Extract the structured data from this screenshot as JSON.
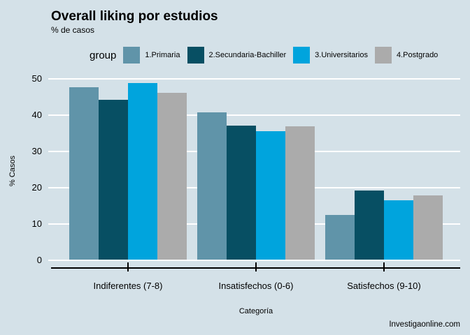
{
  "page": {
    "background_color": "#D4E1E8",
    "watermark": "Investigaonline.com"
  },
  "chart_data": {
    "type": "bar",
    "title": "Overall liking por estudios",
    "subtitle": "% de casos",
    "xlabel": "Categoría",
    "ylabel": "% Casos",
    "ylim": [
      0,
      50
    ],
    "yticks": [
      0,
      10,
      20,
      30,
      40,
      50
    ],
    "grid": true,
    "gridline_color": "#FFFFFF",
    "legend_title": "group",
    "legend_position": "top",
    "categories": [
      "Indiferentes (7-8)",
      "Insatisfechos (0-6)",
      "Satisfechos (9-10)"
    ],
    "series": [
      {
        "name": "1.Primaria",
        "color": "#6094A9",
        "values": [
          47.5,
          40.5,
          12.3
        ]
      },
      {
        "name": "2.Secundaria-Bachiller",
        "color": "#074F63",
        "values": [
          44.0,
          37.0,
          19.0
        ]
      },
      {
        "name": "3.Universitarios",
        "color": "#00A4DD",
        "values": [
          48.6,
          35.3,
          16.4
        ]
      },
      {
        "name": "4.Postgrado",
        "color": "#ABABAB",
        "values": [
          46.0,
          36.7,
          17.6
        ]
      }
    ]
  }
}
